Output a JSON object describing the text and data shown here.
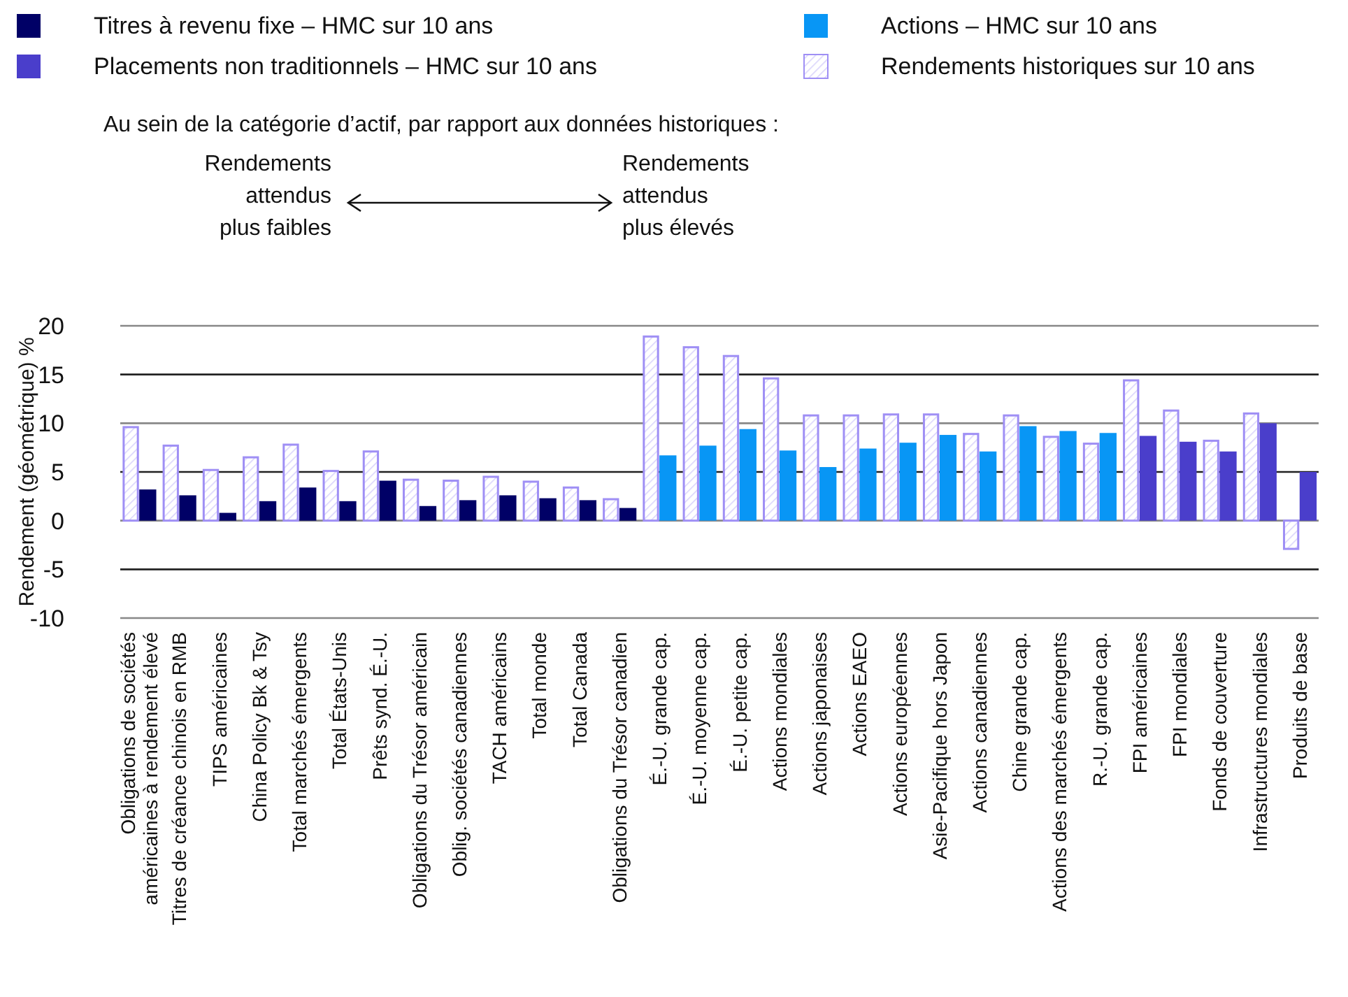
{
  "chart_data": {
    "type": "bar",
    "ylabel": "Rendement  (géométrique) %",
    "annotations": [
      "Au sein de la catégorie d’actif, par rapport aux données historiques :",
      "Rendements attendus plus faibles",
      "Rendements attendus plus élevés"
    ],
    "categories": [
      "Obligations de sociétés américaines à rendement élevé",
      "Titres de créance chinois en RMB",
      "TIPS américaines",
      "China Policy Bk & Tsy",
      "Total marchés émergents",
      "Total États-Unis",
      "Prêts synd. É.-U.",
      "Obligations du Trésor américain",
      "Oblig. sociétés canadiennes",
      "TACH américains",
      "Total monde",
      "Total Canada",
      "Obligations du Trésor canadien",
      "É.-U. grande cap.",
      "É.-U. moyenne cap.",
      "É.-U. petite cap.",
      "Actions mondiales",
      "Actions japonaises",
      "Actions EAEO",
      "Actions européennes",
      "Asie-Pacifique hors Japon",
      "Actions canadiennes",
      "Chine grande cap.",
      "Actions des marchés émergents",
      "R.-U. grande cap.",
      "FPI américaines",
      "FPI mondiales",
      "Fonds de couverture",
      "Infrastructures mondiales",
      "Produits de base"
    ],
    "series": [
      {
        "name": "Titres à revenu fixe – HMC sur 10 ans",
        "color": "#000066",
        "values": [
          3.2,
          2.6,
          0.8,
          2.0,
          3.4,
          2.0,
          4.1,
          1.5,
          2.1,
          2.6,
          2.3,
          2.1,
          1.3,
          null,
          null,
          null,
          null,
          null,
          null,
          null,
          null,
          null,
          null,
          null,
          null,
          null,
          null,
          null,
          null,
          null
        ]
      },
      {
        "name": "Placements non traditionnels – HMC sur 10 ans",
        "color": "#4a3ecb",
        "values": [
          null,
          null,
          null,
          null,
          null,
          null,
          null,
          null,
          null,
          null,
          null,
          null,
          null,
          null,
          null,
          null,
          null,
          null,
          null,
          null,
          null,
          null,
          null,
          null,
          null,
          8.7,
          8.1,
          7.1,
          10.0,
          5.0
        ]
      },
      {
        "name": "Actions – HMC sur 10 ans",
        "color": "#0896f5",
        "values": [
          null,
          null,
          null,
          null,
          null,
          null,
          null,
          null,
          null,
          null,
          null,
          null,
          null,
          6.7,
          7.7,
          9.4,
          7.2,
          5.5,
          7.4,
          8.0,
          8.8,
          7.1,
          9.7,
          9.2,
          9.0,
          null,
          null,
          null,
          null,
          null
        ]
      },
      {
        "name": "Rendements historiques sur 10 ans",
        "color": "#9f8ff5",
        "values": [
          9.6,
          7.7,
          5.2,
          6.5,
          7.8,
          5.1,
          7.1,
          4.2,
          4.1,
          4.5,
          4.0,
          3.4,
          2.2,
          18.9,
          17.8,
          16.9,
          14.6,
          10.8,
          10.8,
          10.9,
          10.9,
          8.9,
          10.8,
          8.6,
          7.9,
          14.4,
          11.3,
          8.2,
          11.0,
          -2.9
        ]
      }
    ],
    "ylim": [
      -10,
      20
    ],
    "yticks": [
      -10,
      -5,
      0,
      5,
      10,
      15,
      20
    ],
    "grid": "y",
    "legend": "top"
  }
}
